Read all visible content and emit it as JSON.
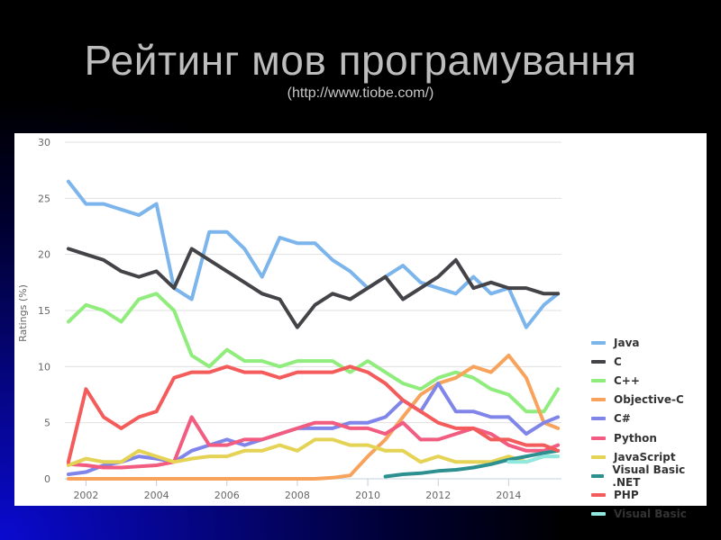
{
  "slide": {
    "title": "Рейтинг мов програмування",
    "subtitle": "(http://www.tiobe.com/)"
  },
  "chart_data": {
    "type": "line",
    "title": "",
    "xlabel": "",
    "ylabel": "Ratings (%)",
    "ylim": [
      0,
      30
    ],
    "yticks": [
      0,
      5,
      10,
      15,
      20,
      25,
      30
    ],
    "xticks": [
      "2002",
      "2004",
      "2006",
      "2008",
      "2010",
      "2012",
      "2014"
    ],
    "xlim": [
      2001.4,
      2015.5
    ],
    "grid": true,
    "legend_position": "right",
    "x": [
      2001.5,
      2002,
      2002.5,
      2003,
      2003.5,
      2004,
      2004.5,
      2005,
      2005.5,
      2006,
      2006.5,
      2007,
      2007.5,
      2008,
      2008.5,
      2009,
      2009.5,
      2010,
      2010.5,
      2011,
      2011.5,
      2012,
      2012.5,
      2013,
      2013.5,
      2014,
      2014.5,
      2015,
      2015.4
    ],
    "series": [
      {
        "name": "Java",
        "color": "#7cb5ec",
        "values": [
          26.5,
          24.5,
          24.5,
          24.0,
          23.5,
          24.5,
          17.0,
          16.0,
          22.0,
          22.0,
          20.5,
          18.0,
          21.5,
          21.0,
          21.0,
          19.5,
          18.5,
          17.0,
          18.0,
          19.0,
          17.5,
          17.0,
          16.5,
          18.0,
          16.5,
          17.0,
          13.5,
          15.5,
          16.5
        ]
      },
      {
        "name": "C",
        "color": "#434348",
        "values": [
          20.5,
          20.0,
          19.5,
          18.5,
          18.0,
          18.5,
          17.0,
          20.5,
          19.5,
          18.5,
          17.5,
          16.5,
          16.0,
          13.5,
          15.5,
          16.5,
          16.0,
          17.0,
          18.0,
          16.0,
          17.0,
          18.0,
          19.5,
          17.0,
          17.5,
          17.0,
          17.0,
          16.5,
          16.5
        ]
      },
      {
        "name": "C++",
        "color": "#90ed7d",
        "values": [
          14.0,
          15.5,
          15.0,
          14.0,
          16.0,
          16.5,
          15.0,
          11.0,
          10.0,
          11.5,
          10.5,
          10.5,
          10.0,
          10.5,
          10.5,
          10.5,
          9.5,
          10.5,
          9.5,
          8.5,
          8.0,
          9.0,
          9.5,
          9.0,
          8.0,
          7.5,
          6.0,
          6.0,
          8.0
        ]
      },
      {
        "name": "Objective-C",
        "color": "#f7a35c",
        "values": [
          0,
          0,
          0,
          0,
          0,
          0,
          0,
          0,
          0,
          0,
          0,
          0,
          0,
          0,
          0,
          0.1,
          0.3,
          2.0,
          3.5,
          5.5,
          7.5,
          8.5,
          9.0,
          10.0,
          9.5,
          11.0,
          9.0,
          5.0,
          4.5
        ]
      },
      {
        "name": "C#",
        "color": "#8085e9",
        "values": [
          0.4,
          0.6,
          1.2,
          1.5,
          2.0,
          1.8,
          1.5,
          2.5,
          3.0,
          3.5,
          3.0,
          3.5,
          4.0,
          4.5,
          4.5,
          4.5,
          5.0,
          5.0,
          5.5,
          7.0,
          6.0,
          8.5,
          6.0,
          6.0,
          5.5,
          5.5,
          4.0,
          5.0,
          5.5
        ]
      },
      {
        "name": "Python",
        "color": "#f15c80",
        "values": [
          1.3,
          1.2,
          1.0,
          1.0,
          1.1,
          1.2,
          1.5,
          5.5,
          3.0,
          3.0,
          3.5,
          3.5,
          4.0,
          4.5,
          5.0,
          5.0,
          4.5,
          4.5,
          4.0,
          5.0,
          3.5,
          3.5,
          4.0,
          4.5,
          4.0,
          3.0,
          2.5,
          2.5,
          3.0
        ]
      },
      {
        "name": "JavaScript",
        "color": "#e4d354",
        "values": [
          1.2,
          1.8,
          1.5,
          1.5,
          2.5,
          2.0,
          1.5,
          1.8,
          2.0,
          2.0,
          2.5,
          2.5,
          3.0,
          2.5,
          3.5,
          3.5,
          3.0,
          3.0,
          2.5,
          2.5,
          1.5,
          2.0,
          1.5,
          1.5,
          1.5,
          2.0,
          1.5,
          2.0,
          2.0
        ]
      },
      {
        "name": "Visual Basic .NET",
        "color": "#2b908f",
        "values": [
          null,
          null,
          null,
          null,
          null,
          null,
          null,
          null,
          null,
          null,
          null,
          null,
          null,
          null,
          null,
          null,
          null,
          null,
          0.2,
          0.4,
          0.5,
          0.7,
          0.8,
          1.0,
          1.3,
          1.7,
          2.0,
          2.3,
          2.5
        ]
      },
      {
        "name": "PHP",
        "color": "#f45b5b",
        "values": [
          1.5,
          8.0,
          5.5,
          4.5,
          5.5,
          6.0,
          9.0,
          9.5,
          9.5,
          10.0,
          9.5,
          9.5,
          9.0,
          9.5,
          9.5,
          9.5,
          10.0,
          9.5,
          8.5,
          7.0,
          6.0,
          5.0,
          4.5,
          4.5,
          3.5,
          3.5,
          3.0,
          3.0,
          2.5
        ]
      },
      {
        "name": "Visual Basic",
        "color": "#91e8e1",
        "values": [
          null,
          null,
          null,
          null,
          null,
          null,
          null,
          null,
          null,
          null,
          null,
          null,
          null,
          null,
          null,
          null,
          null,
          null,
          null,
          null,
          null,
          null,
          null,
          null,
          null,
          1.5,
          1.5,
          2.0,
          2.0
        ]
      }
    ]
  }
}
